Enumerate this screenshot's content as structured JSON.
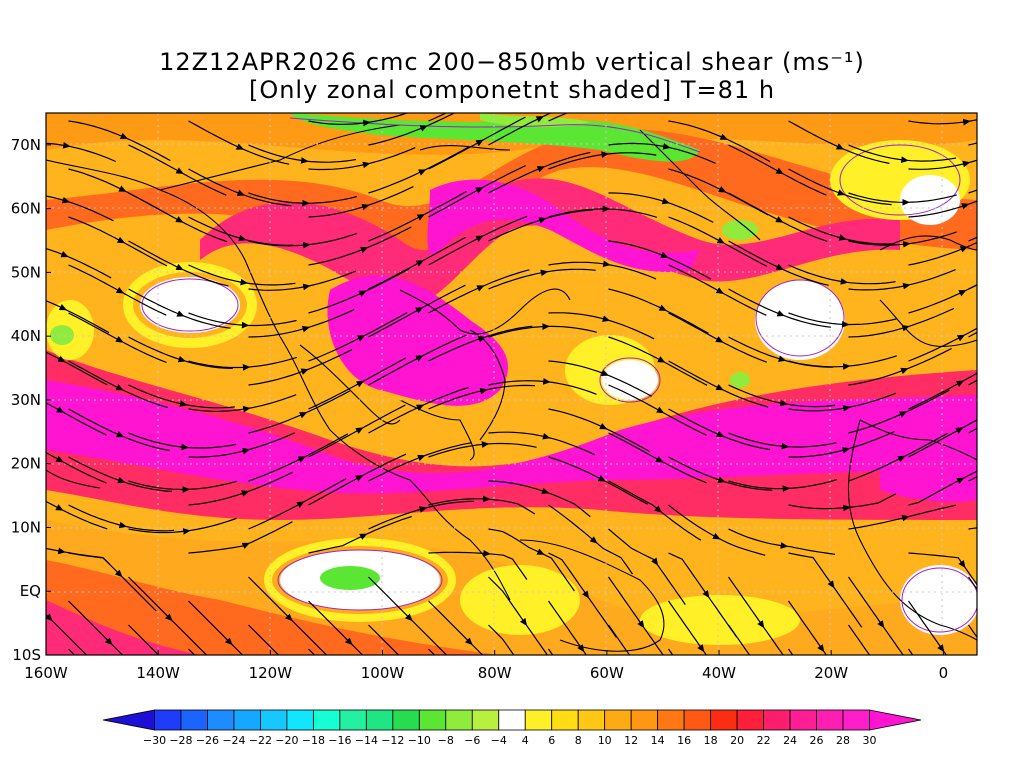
{
  "title": {
    "line1": "12Z12APR2026 cmc 200−850mb vertical shear (ms⁻¹)",
    "line2": "[Only zonal componetnt shaded] T=81 h"
  },
  "map": {
    "lat_labels": [
      "70N",
      "60N",
      "50N",
      "40N",
      "30N",
      "20N",
      "10N",
      "EQ",
      "10S"
    ],
    "lon_labels": [
      "160W",
      "140W",
      "120W",
      "100W",
      "80W",
      "60W",
      "40W",
      "20W",
      "0"
    ],
    "lon_range_deg": [
      -160,
      6
    ],
    "lat_range_deg": [
      -10,
      75
    ],
    "grid": true
  },
  "colorbar": {
    "labels": [
      "−30",
      "−28",
      "−26",
      "−24",
      "−22",
      "−20",
      "−18",
      "−16",
      "−14",
      "−12",
      "−10",
      "−8",
      "−6",
      "−4",
      "4",
      "6",
      "8",
      "10",
      "12",
      "14",
      "16",
      "18",
      "20",
      "22",
      "24",
      "26",
      "28",
      "30"
    ],
    "colors": [
      "#1e0fd6",
      "#1e3cff",
      "#1c64ff",
      "#1e8cff",
      "#16a8ff",
      "#16c8ff",
      "#12e6ff",
      "#15ffd2",
      "#23f0a0",
      "#1ee682",
      "#28dc50",
      "#5ae632",
      "#90eb3c",
      "#b8f040",
      "#ffffff",
      "#fff028",
      "#ffdc14",
      "#ffc814",
      "#ffaa14",
      "#ff9614",
      "#ff7814",
      "#ff5a14",
      "#ff2d14",
      "#ff1e3c",
      "#ff1e6e",
      "#ff1e96",
      "#ff1eb4",
      "#ff1ec8",
      "#ff14d2"
    ]
  }
}
